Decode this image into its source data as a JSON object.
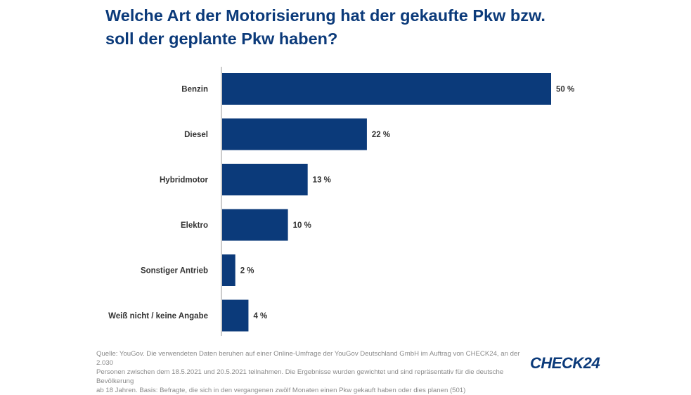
{
  "title_lines": [
    "Welche Art der Motorisierung hat der gekaufte Pkw bzw.",
    "soll der geplante Pkw haben?"
  ],
  "chart_data": {
    "type": "bar",
    "orientation": "horizontal",
    "categories": [
      "Benzin",
      "Diesel",
      "Hybridmotor",
      "Elektro",
      "Sonstiger Antrieb",
      "Weiß nicht / keine Angabe"
    ],
    "values": [
      50,
      22,
      13,
      10,
      2,
      4
    ],
    "value_labels": [
      "50 %",
      "22 %",
      "13 %",
      "10 %",
      "2 %",
      "4 %"
    ],
    "unit": "%",
    "xlim": [
      0,
      50
    ],
    "grid": false,
    "bar_color": "#0b3a7a"
  },
  "source_lines": [
    "Quelle: YouGov. Die verwendeten Daten beruhen auf einer Online-Umfrage der YouGov Deutschland GmbH im Auftrag von CHECK24, an der 2.030",
    "Personen zwischen dem 18.5.2021 und 20.5.2021 teilnahmen. Die Ergebnisse wurden gewichtet und sind repräsentativ für die deutsche Bevölkerung",
    "ab 18 Jahren. Basis: Befragte, die sich in den vergangenen zwölf Monaten einen Pkw gekauft haben oder dies planen (501)"
  ],
  "logo_text": "CHECK24"
}
